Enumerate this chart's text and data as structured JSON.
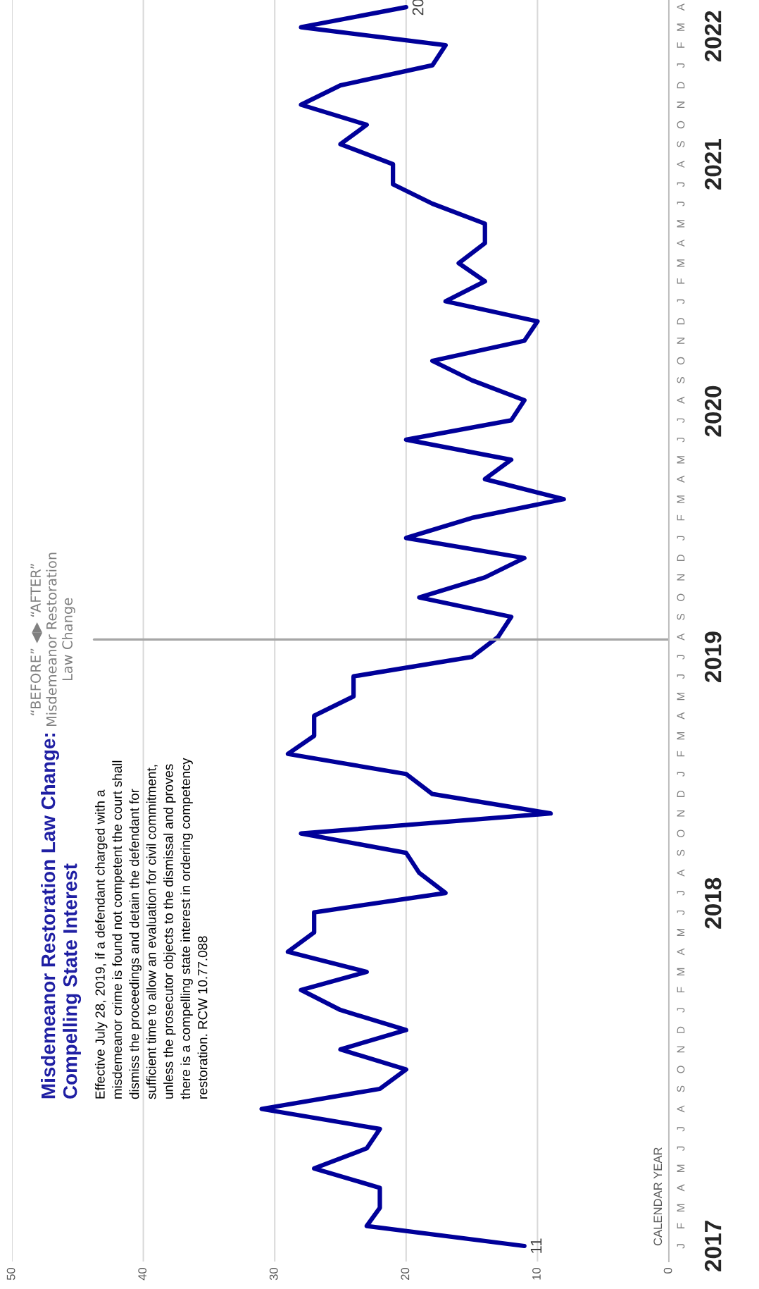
{
  "chart_data": {
    "type": "line",
    "orientation": "horizontal",
    "title": "Misdemeanor Restoration Law Change:\nCompelling State Interest",
    "annotations": [
      "Effective July 28, 2019, if a defendant charged with a\nmisdemeanor crime is found not competent the court shall\ndismiss the proceedings and detain the defendant for\nsufficient time to allow an evaluation for civil commitment,\nunless the prosecutor objects to the dismissal and proves\nthere is a compelling state interest in ordering competency\nrestoration. RCW 10.77.088"
    ],
    "ylabel": "CALENDAR YEAR",
    "x": [
      "2017-01",
      "2017-02",
      "2017-03",
      "2017-04",
      "2017-05",
      "2017-06",
      "2017-07",
      "2017-08",
      "2017-09",
      "2017-10",
      "2017-11",
      "2017-12",
      "2018-01",
      "2018-02",
      "2018-03",
      "2018-04",
      "2018-05",
      "2018-06",
      "2018-07",
      "2018-08",
      "2018-09",
      "2018-10",
      "2018-11",
      "2018-12",
      "2019-01",
      "2019-02",
      "2019-03",
      "2019-04",
      "2019-05",
      "2019-06",
      "2019-07",
      "2019-08",
      "2019-09",
      "2019-10",
      "2019-11",
      "2019-12",
      "2020-01",
      "2020-02",
      "2020-03",
      "2020-04",
      "2020-05",
      "2020-06",
      "2020-07",
      "2020-08",
      "2020-09",
      "2020-10",
      "2020-11",
      "2020-12",
      "2021-01",
      "2021-02",
      "2021-03",
      "2021-04",
      "2021-05",
      "2021-06",
      "2021-07",
      "2021-08",
      "2021-09",
      "2021-10",
      "2021-11",
      "2021-12",
      "2022-01",
      "2022-02",
      "2022-03",
      "2022-04"
    ],
    "values": [
      11,
      23,
      22,
      22,
      27,
      23,
      22,
      31,
      22,
      20,
      25,
      20,
      25,
      28,
      23,
      29,
      27,
      27,
      17,
      19,
      20,
      28,
      9,
      18,
      20,
      29,
      27,
      27,
      24,
      24,
      15,
      13,
      12,
      19,
      14,
      11,
      20,
      15,
      8,
      14,
      12,
      20,
      12,
      11,
      15,
      18,
      11,
      10,
      17,
      14,
      16,
      14,
      14,
      18,
      21,
      21,
      25,
      23,
      28,
      25,
      18,
      17,
      28,
      20
    ],
    "value_labels": [
      "11",
      null,
      null,
      null,
      null,
      null,
      null,
      null,
      null,
      null,
      null,
      null,
      null,
      null,
      null,
      null,
      null,
      null,
      null,
      null,
      null,
      null,
      null,
      null,
      null,
      null,
      null,
      null,
      null,
      null,
      null,
      null,
      null,
      null,
      null,
      null,
      null,
      null,
      null,
      null,
      null,
      null,
      null,
      null,
      null,
      null,
      null,
      null,
      null,
      null,
      null,
      null,
      null,
      null,
      null,
      null,
      null,
      null,
      null,
      null,
      null,
      null,
      null,
      "20"
    ],
    "color": "#000099",
    "xlim": [
      50,
      0
    ],
    "xticks": [
      0,
      10,
      20,
      30,
      40,
      50
    ],
    "ylim": [
      "2016-12-08",
      "2022-04-12"
    ],
    "yticks": [
      {
        "value": "2017-01-01",
        "label": "2017"
      },
      {
        "value": "2018-06-15",
        "label": "2018"
      },
      {
        "value": "2019-07-01",
        "label": "2019"
      },
      {
        "value": "2020-07-15",
        "label": "2020"
      },
      {
        "value": "2021-08-01",
        "label": "2021"
      },
      {
        "value": "2022-02-15",
        "label": "2022"
      }
    ],
    "y2_categories": [
      "A",
      "M",
      "F",
      "J",
      "D",
      "N",
      "O",
      "S",
      "A",
      "J",
      "J",
      "M",
      "A",
      "M",
      "F",
      "J",
      "D",
      "N",
      "O",
      "S",
      "A",
      "J",
      "J",
      "M",
      "A",
      "M",
      "F",
      "J",
      "D",
      "N",
      "O",
      "S",
      "A",
      "J",
      "J",
      "M",
      "A",
      "M",
      "F",
      "J",
      "D",
      "N",
      "O",
      "S",
      "A",
      "J",
      "J",
      "M",
      "A",
      "M",
      "F",
      "J",
      "D",
      "N",
      "O",
      "S",
      "A",
      "J",
      "J",
      "M",
      "A",
      "M",
      "F",
      "J"
    ],
    "grid": "x",
    "ref_lines": [
      {
        "axis": "y",
        "value": "2019-07-28",
        "label": "“BEFORE” ◀▶ “AFTER”\nMisdemeanor Restoration\nLaw Change",
        "color": "#a6a6a6"
      }
    ]
  }
}
